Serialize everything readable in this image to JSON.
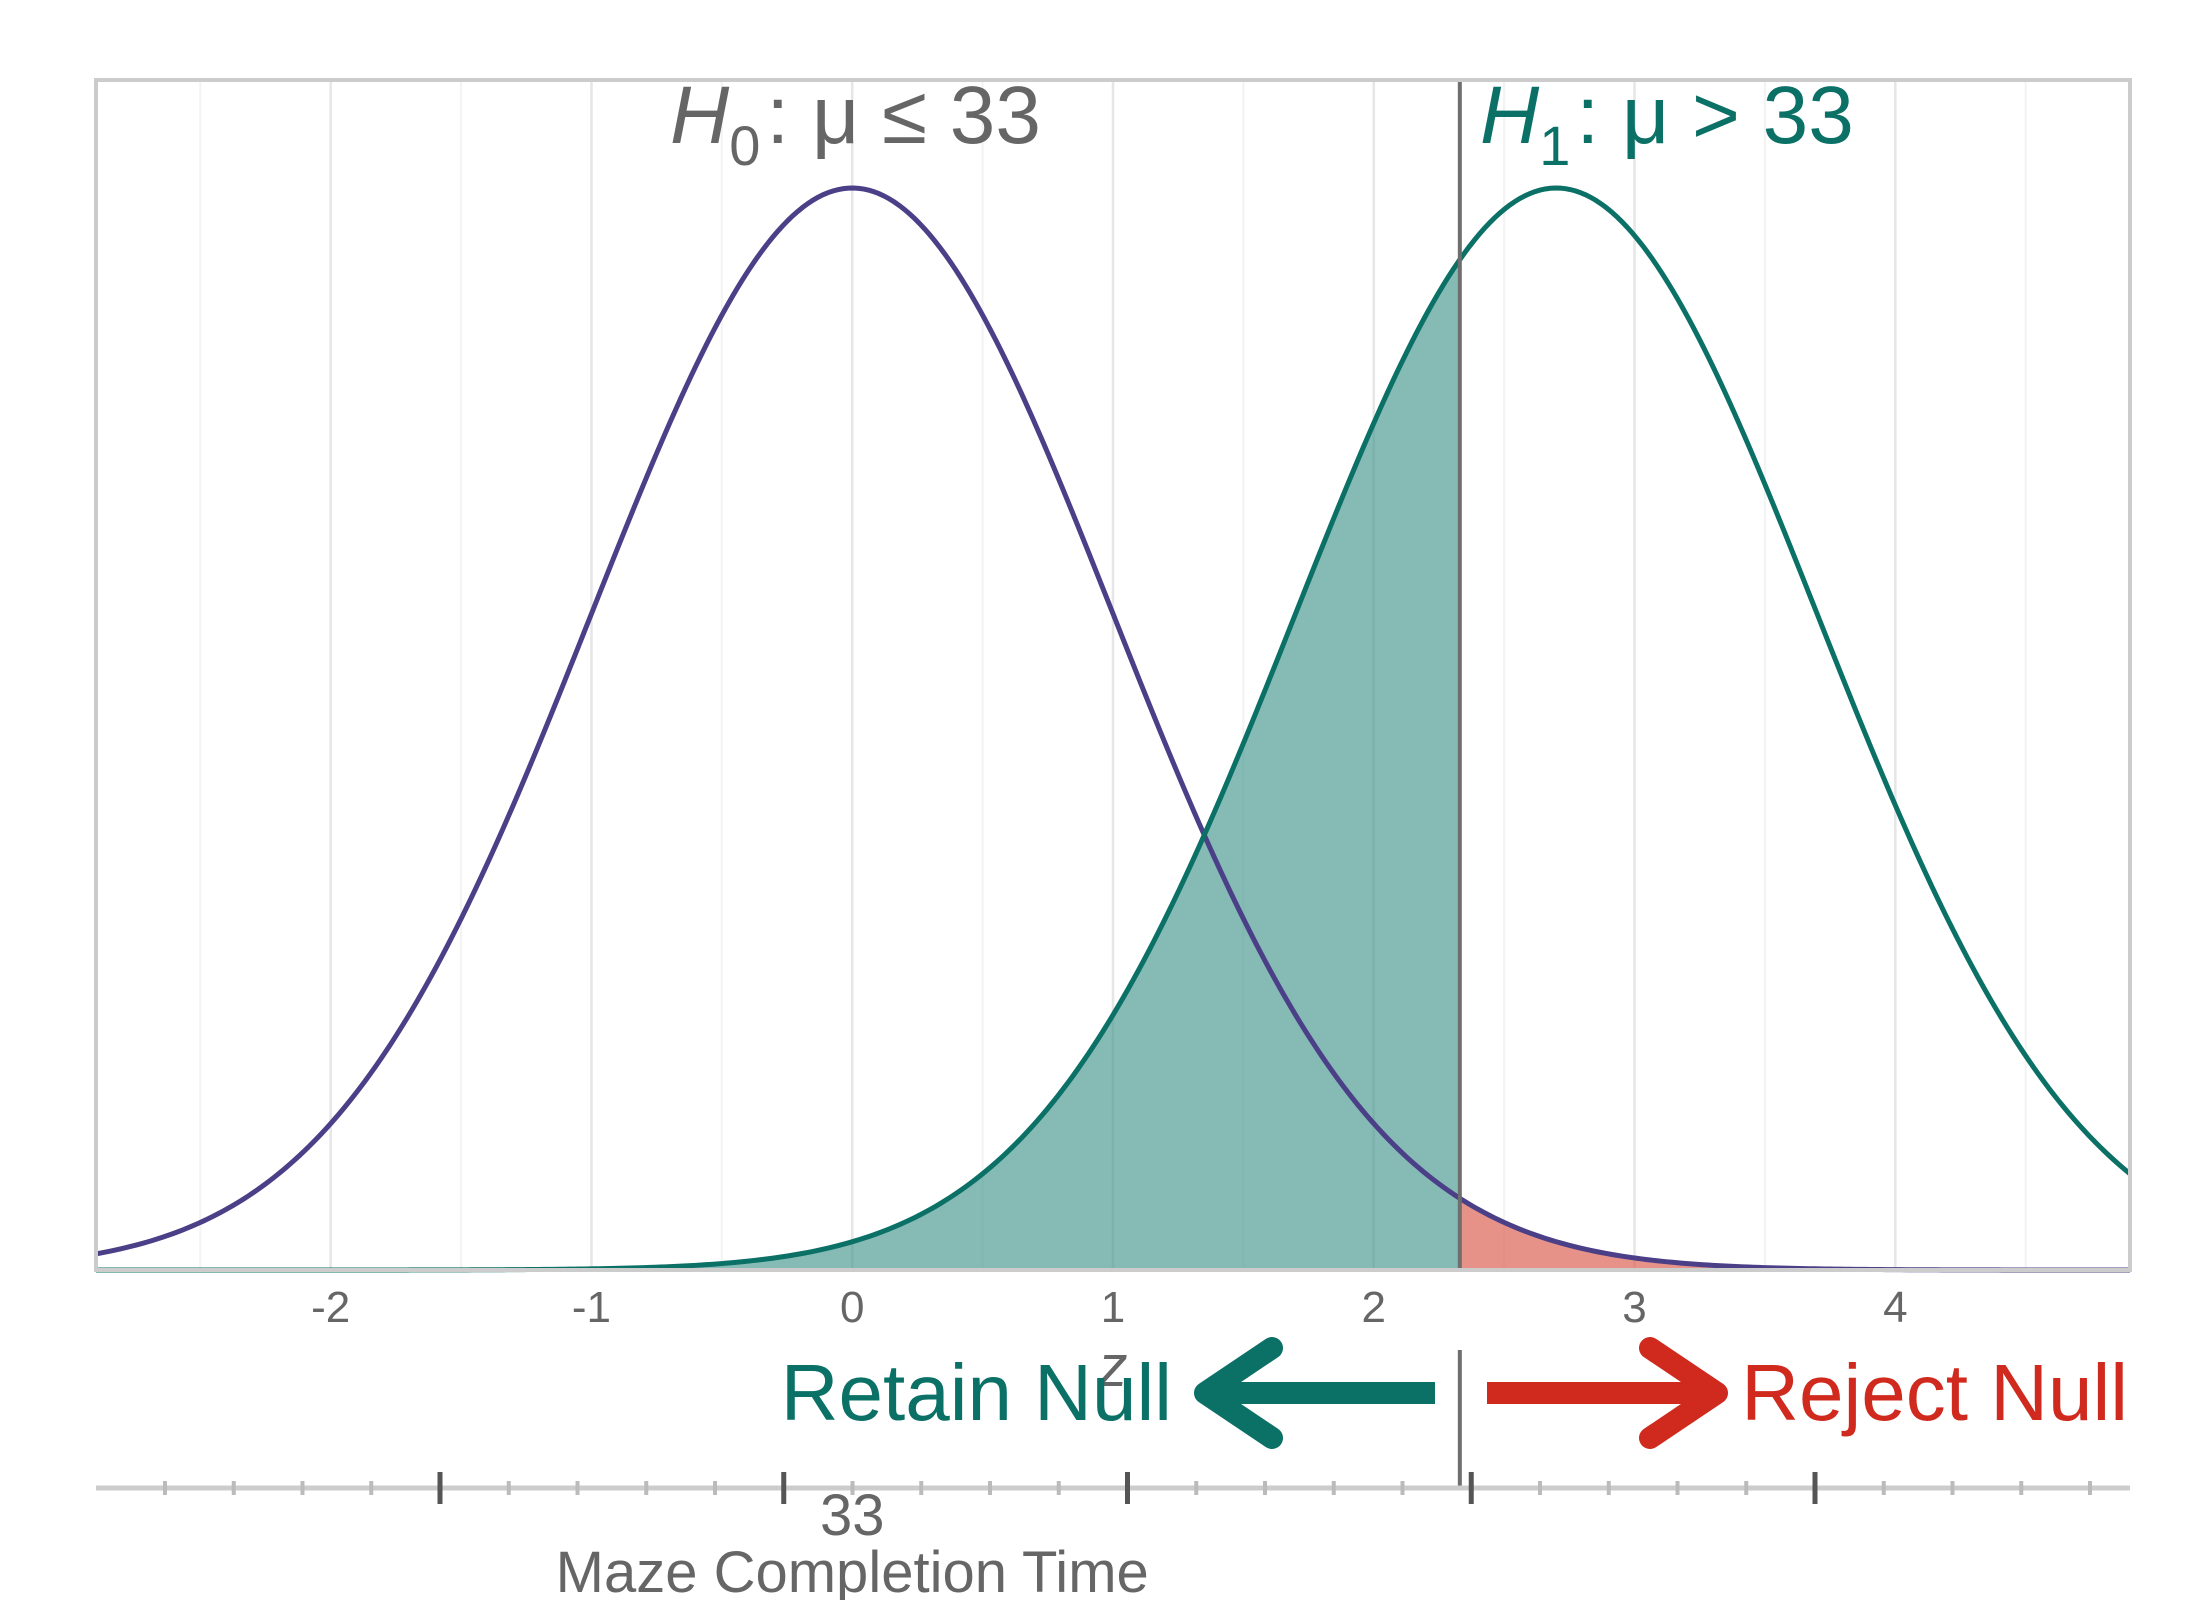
{
  "chart_data": {
    "type": "area",
    "x_axis": {
      "label": "z",
      "ticks": [
        -2,
        -1,
        0,
        1,
        2,
        3,
        4
      ],
      "range": [
        -2.9,
        4.9
      ]
    },
    "y_axis": {
      "label": "",
      "range": [
        0,
        0.42
      ]
    },
    "grid": "vertical",
    "series": [
      {
        "name": "H0",
        "mean": 0,
        "sd": 1,
        "color": "#4B3F87"
      },
      {
        "name": "H1",
        "mean": 2.7,
        "sd": 1,
        "color": "#0B7066"
      }
    ],
    "critical_value": 2.33,
    "shaded_regions": [
      {
        "series": "H1",
        "from": -2.9,
        "to": 2.33,
        "color": "#3A8F87",
        "opacity": 0.62
      },
      {
        "series": "H0",
        "from": 2.33,
        "to": 4.9,
        "color": "#D9584A",
        "opacity": 0.65
      }
    ],
    "hypotheses": {
      "h0": {
        "symbol": "H",
        "subscript": "0",
        "relation": ": μ ≤ 33",
        "color": "#666666"
      },
      "h1": {
        "symbol": "H",
        "subscript": "1",
        "relation": ": μ > 33",
        "color": "#0B7066"
      }
    },
    "decisions": {
      "retain": {
        "text": "Retain Null",
        "color": "#0B7066"
      },
      "reject": {
        "text": "Reject Null",
        "color": "#D02A1E"
      }
    },
    "secondary_axis": {
      "label": "Maze Completion Time",
      "tick_label": "33",
      "tick_label_at_z": 0
    }
  }
}
